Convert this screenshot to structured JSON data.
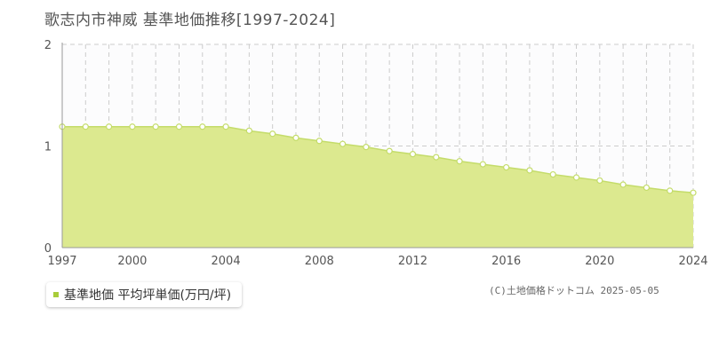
{
  "title": "歌志内市神威 基準地価推移[1997-2024]",
  "legend": {
    "label": "基準地価 平均坪単価(万円/坪)"
  },
  "credit": "(C)土地価格ドットコム 2025-05-05",
  "colors": {
    "fill": "#dce98f",
    "line": "#c4dc6a",
    "point_fill": "#ffffff",
    "grid": "#cccccc",
    "marker": "#a8cc3a",
    "plot_bg": "#fcfcfd"
  },
  "chart_data": {
    "type": "area",
    "title": "歌志内市神威 基準地価推移[1997-2024]",
    "xlabel": "",
    "ylabel": "",
    "xlim": [
      1997,
      2024
    ],
    "ylim": [
      0,
      2
    ],
    "x_ticks": [
      1997,
      2000,
      2004,
      2008,
      2012,
      2016,
      2020,
      2024
    ],
    "y_ticks": [
      0,
      1,
      2
    ],
    "grid": true,
    "legend_position": "bottom-left",
    "series": [
      {
        "name": "基準地価 平均坪単価(万円/坪)",
        "x": [
          1997,
          1998,
          1999,
          2000,
          2001,
          2002,
          2003,
          2004,
          2005,
          2006,
          2007,
          2008,
          2009,
          2010,
          2011,
          2012,
          2013,
          2014,
          2015,
          2016,
          2017,
          2018,
          2019,
          2020,
          2021,
          2022,
          2023,
          2024
        ],
        "values": [
          1.19,
          1.19,
          1.19,
          1.19,
          1.19,
          1.19,
          1.19,
          1.19,
          1.15,
          1.12,
          1.08,
          1.05,
          1.02,
          0.99,
          0.95,
          0.92,
          0.89,
          0.85,
          0.82,
          0.79,
          0.76,
          0.72,
          0.69,
          0.66,
          0.62,
          0.59,
          0.56,
          0.54
        ]
      }
    ]
  }
}
